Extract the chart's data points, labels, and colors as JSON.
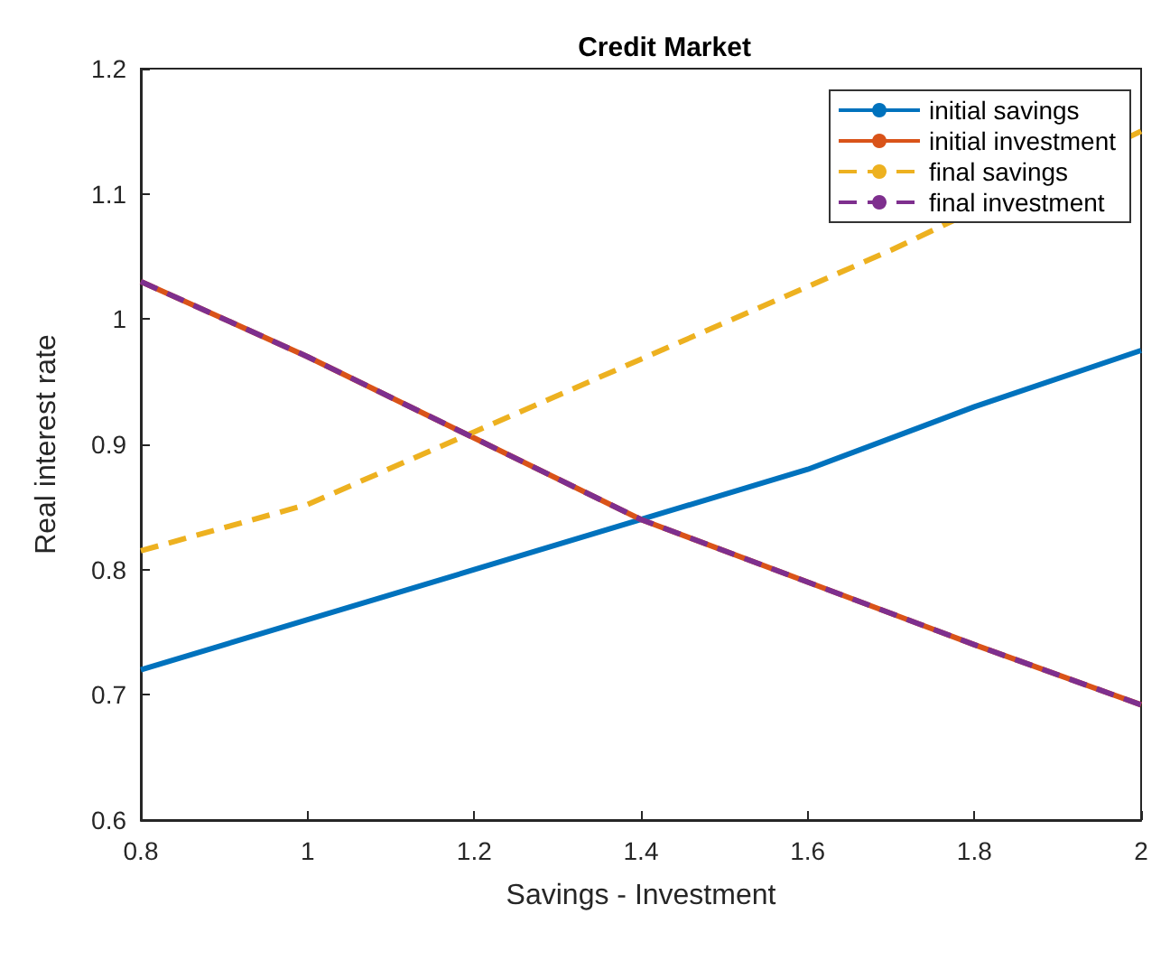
{
  "chart_data": {
    "type": "line",
    "title": "Credit Market",
    "xlabel": "Savings - Investment",
    "ylabel": "Real interest rate",
    "x": [
      0.8,
      1.0,
      1.2,
      1.4,
      1.6,
      1.8,
      2.0
    ],
    "series": [
      {
        "name": "initial savings",
        "color": "#0072bd",
        "values": [
          0.72,
          0.76,
          0.8,
          0.84,
          0.88,
          0.93,
          0.975
        ],
        "line_style": "solid"
      },
      {
        "name": "initial investment",
        "color": "#d95319",
        "values": [
          1.03,
          0.97,
          0.905,
          0.84,
          0.79,
          0.74,
          0.692
        ],
        "line_style": "solid"
      },
      {
        "name": "final savings",
        "color": "#edb120",
        "x": [
          0.8,
          1.0,
          1.2,
          1.4,
          1.6,
          1.7,
          2.0
        ],
        "values": [
          0.815,
          0.852,
          0.91,
          0.968,
          1.026,
          1.055,
          1.15
        ],
        "line_style": "dashed"
      },
      {
        "name": "final investment",
        "color": "#7e2f8e",
        "values": [
          1.03,
          0.97,
          0.905,
          0.84,
          0.79,
          0.74,
          0.692
        ],
        "line_style": "dashed"
      }
    ],
    "xlim": [
      0.8,
      2
    ],
    "xticks": [
      0.8,
      1,
      1.2,
      1.4,
      1.6,
      1.8,
      2
    ],
    "ylim": [
      0.6,
      1.2
    ],
    "yticks": [
      0.6,
      0.7,
      0.8,
      0.9,
      1,
      1.1,
      1.2
    ],
    "grid": false,
    "legend": "top right",
    "marker": "none"
  }
}
